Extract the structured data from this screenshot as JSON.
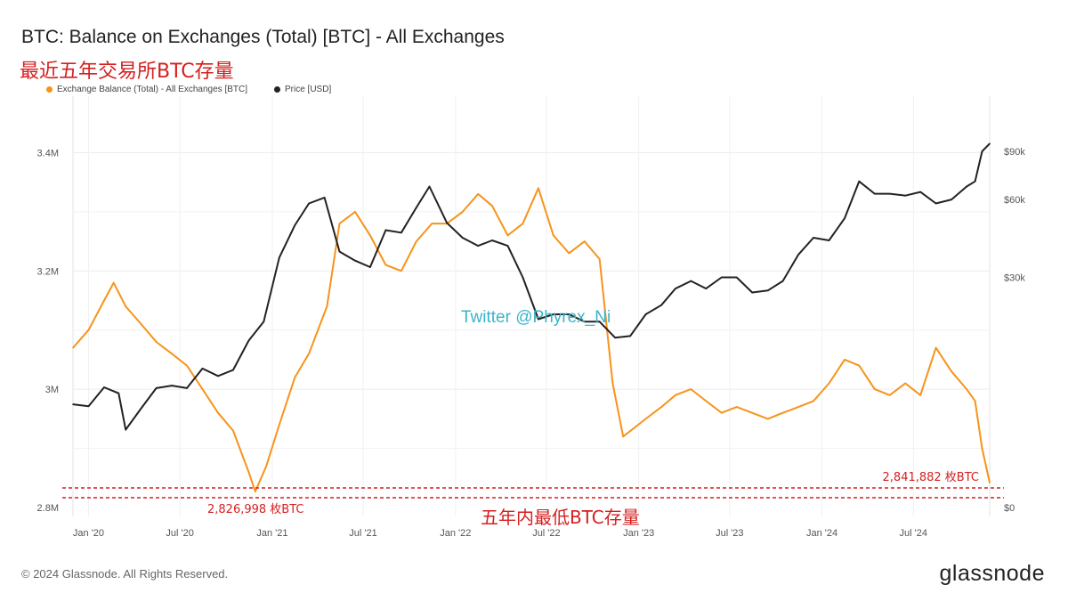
{
  "header": {
    "title": "BTC: Balance on Exchanges (Total) [BTC] - All Exchanges",
    "subtitle": "最近五年交易所BTC存量"
  },
  "legend": {
    "items": [
      {
        "label": "Exchange Balance (Total) - All Exchanges [BTC]",
        "color": "#f7931a"
      },
      {
        "label": "Price [USD]",
        "color": "#222222"
      }
    ]
  },
  "footer": {
    "copyright": "© 2024 Glassnode. All Rights Reserved.",
    "logo_text": "glassnode"
  },
  "chart_data": {
    "type": "line",
    "title": "BTC: Balance on Exchanges (Total) [BTC] - All Exchanges",
    "x_ticks": [
      "Jan '20",
      "Jul '20",
      "Jan '21",
      "Jul '21",
      "Jan '22",
      "Jul '22",
      "Jan '23",
      "Jul '23",
      "Jan '24",
      "Jul '24"
    ],
    "xlim": [
      "2019-12-01",
      "2024-11-30"
    ],
    "y_left": {
      "ticks": [
        "2.8M",
        "3M",
        "3.2M",
        "3.4M"
      ],
      "range": [
        2800000,
        3500000
      ]
    },
    "y_right": {
      "ticks": [
        "$0",
        "$30k",
        "$60k",
        "$90k"
      ],
      "range": [
        0,
        100000
      ],
      "scale": "log"
    },
    "grid": true,
    "legend_position": "top-left",
    "series": [
      {
        "name": "Exchange Balance (Total) - All Exchanges [BTC]",
        "axis": "left",
        "color": "#f7931a",
        "x": [
          "2019-12-01",
          "2020-01-01",
          "2020-02-01",
          "2020-02-20",
          "2020-03-15",
          "2020-04-15",
          "2020-05-15",
          "2020-06-15",
          "2020-07-15",
          "2020-08-15",
          "2020-09-15",
          "2020-10-15",
          "2020-11-15",
          "2020-11-28",
          "2020-12-20",
          "2021-01-15",
          "2021-02-15",
          "2021-03-15",
          "2021-04-20",
          "2021-05-15",
          "2021-06-15",
          "2021-07-15",
          "2021-08-15",
          "2021-09-15",
          "2021-10-15",
          "2021-11-15",
          "2021-12-15",
          "2022-01-15",
          "2022-02-15",
          "2022-03-15",
          "2022-04-15",
          "2022-05-15",
          "2022-06-15",
          "2022-07-15",
          "2022-08-15",
          "2022-09-15",
          "2022-10-15",
          "2022-11-10",
          "2022-12-01",
          "2023-01-15",
          "2023-02-15",
          "2023-03-15",
          "2023-04-15",
          "2023-05-15",
          "2023-06-15",
          "2023-07-15",
          "2023-08-15",
          "2023-09-15",
          "2023-10-15",
          "2023-11-15",
          "2023-12-15",
          "2024-01-15",
          "2024-02-15",
          "2024-03-15",
          "2024-04-15",
          "2024-05-15",
          "2024-06-15",
          "2024-07-15",
          "2024-08-15",
          "2024-09-15",
          "2024-10-15",
          "2024-11-01",
          "2024-11-15",
          "2024-11-30"
        ],
        "values": [
          3070000,
          3100000,
          3150000,
          3180000,
          3140000,
          3110000,
          3080000,
          3060000,
          3040000,
          3000000,
          2960000,
          2930000,
          2860000,
          2827000,
          2870000,
          2940000,
          3020000,
          3060000,
          3140000,
          3280000,
          3300000,
          3260000,
          3210000,
          3200000,
          3250000,
          3280000,
          3280000,
          3300000,
          3330000,
          3310000,
          3260000,
          3280000,
          3340000,
          3260000,
          3230000,
          3250000,
          3220000,
          3010000,
          2920000,
          2950000,
          2970000,
          2990000,
          3000000,
          2980000,
          2960000,
          2970000,
          2960000,
          2950000,
          2960000,
          2970000,
          2980000,
          3010000,
          3050000,
          3040000,
          3000000,
          2990000,
          3010000,
          2990000,
          3070000,
          3030000,
          3000000,
          2980000,
          2900000,
          2841882
        ]
      },
      {
        "name": "Price [USD]",
        "axis": "right",
        "color": "#222222",
        "x": [
          "2019-12-01",
          "2020-01-01",
          "2020-02-01",
          "2020-03-01",
          "2020-03-15",
          "2020-04-15",
          "2020-05-15",
          "2020-06-15",
          "2020-07-15",
          "2020-08-15",
          "2020-09-15",
          "2020-10-15",
          "2020-11-15",
          "2020-12-15",
          "2021-01-15",
          "2021-02-15",
          "2021-03-15",
          "2021-04-15",
          "2021-05-15",
          "2021-06-15",
          "2021-07-15",
          "2021-08-15",
          "2021-09-15",
          "2021-10-15",
          "2021-11-10",
          "2021-12-15",
          "2022-01-15",
          "2022-02-15",
          "2022-03-15",
          "2022-04-15",
          "2022-05-15",
          "2022-06-15",
          "2022-07-15",
          "2022-08-15",
          "2022-09-15",
          "2022-10-15",
          "2022-11-15",
          "2022-12-15",
          "2023-01-15",
          "2023-02-15",
          "2023-03-15",
          "2023-04-15",
          "2023-05-15",
          "2023-06-15",
          "2023-07-15",
          "2023-08-15",
          "2023-09-15",
          "2023-10-15",
          "2023-11-15",
          "2023-12-15",
          "2024-01-15",
          "2024-02-15",
          "2024-03-15",
          "2024-04-15",
          "2024-05-15",
          "2024-06-15",
          "2024-07-15",
          "2024-08-15",
          "2024-09-15",
          "2024-10-15",
          "2024-11-01",
          "2024-11-15",
          "2024-11-30"
        ],
        "values": [
          7400,
          7200,
          9300,
          8600,
          5000,
          7000,
          9200,
          9500,
          9200,
          11700,
          10700,
          11500,
          16000,
          19500,
          36000,
          48000,
          58000,
          61000,
          38000,
          35000,
          33000,
          46000,
          45000,
          56000,
          67000,
          49000,
          43000,
          40000,
          42000,
          40000,
          30000,
          20000,
          21000,
          21000,
          19500,
          19500,
          16500,
          16800,
          21000,
          23000,
          27000,
          29000,
          27000,
          30000,
          30000,
          26000,
          26500,
          29000,
          37000,
          43000,
          42000,
          51000,
          70000,
          63000,
          63000,
          62000,
          64000,
          58000,
          60000,
          67000,
          70000,
          90000,
          96000
        ]
      }
    ],
    "annotations": {
      "low_2020": "2,826,998 枚BTC",
      "low_2024": "2,841,882 枚BTC",
      "band_label": "五年内最低BTC存量",
      "watermark": "Twitter @Phyrex_Ni"
    }
  }
}
